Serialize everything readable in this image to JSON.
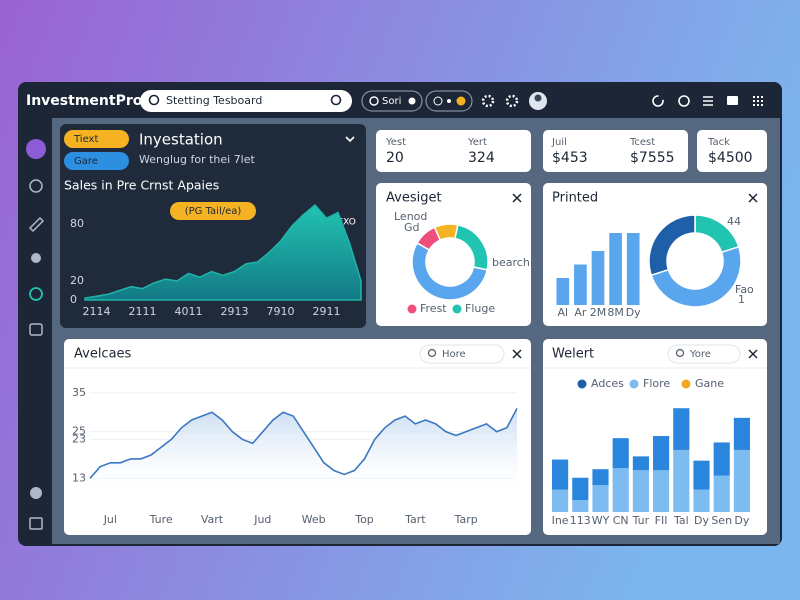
{
  "header": {
    "brand": "InvestmentPro",
    "search": "Stetting Tesboard",
    "chip": "Sori"
  },
  "stats": [
    {
      "label": "Yest",
      "value": 20
    },
    {
      "label": "Yert",
      "value": 324
    },
    {
      "label": "Juil",
      "value": "$453"
    },
    {
      "label": "Tcest",
      "value": "$7555"
    },
    {
      "label": "Tack",
      "value": "$4500"
    }
  ],
  "chart_data": [
    {
      "type": "area",
      "tags": [
        "Tiext",
        "Gare"
      ],
      "title": "Inyestation",
      "subtitle": "Wenglug for thei 7let",
      "heading": "Sales in Pre Crnst Apaies",
      "badge": "(PG Tail/ea)",
      "legend": "PEXO",
      "color": "#1fb5a8",
      "categories": [
        null,
        "2114",
        null,
        null,
        null,
        "2111",
        null,
        null,
        null,
        "4011",
        null,
        null,
        null,
        "2913",
        null,
        null,
        null,
        "7910",
        null,
        null,
        null,
        "2911",
        null,
        null,
        null
      ],
      "values": [
        2,
        4,
        6,
        10,
        14,
        12,
        18,
        22,
        20,
        28,
        24,
        30,
        26,
        30,
        38,
        40,
        50,
        62,
        78,
        90,
        100,
        86,
        92,
        60,
        20
      ],
      "ylim": [
        0,
        100
      ],
      "yticks": [
        0,
        20,
        80
      ]
    },
    {
      "type": "donut",
      "title": "Avesiget",
      "categories": [
        "Frest",
        null,
        "Fluge",
        null
      ],
      "values": [
        10,
        10,
        25,
        55
      ],
      "colors": [
        "#ee4f7e",
        "#f5b324",
        "#20c4b0",
        "#5aa6ee"
      ],
      "annotations": [
        "Lenod",
        "Gd",
        "bearch"
      ]
    },
    {
      "type": "bar",
      "title": "Printed",
      "categories": [
        "Al",
        "Ar",
        "2M",
        "8M",
        "Dy"
      ],
      "values": [
        30,
        45,
        60,
        80,
        80
      ],
      "color": "#5aa6ee",
      "ylim": [
        0,
        100
      ]
    },
    {
      "type": "donut",
      "values": [
        20,
        50,
        30
      ],
      "colors": [
        "#20c4b0",
        "#5aa6ee",
        "#1f5fa8"
      ],
      "annotations": [
        "44",
        "Fao",
        "1"
      ]
    },
    {
      "type": "line",
      "title": "Avelcaes",
      "search": "Hore",
      "color": "#3b78c2",
      "categories": [
        null,
        null,
        "Jul",
        null,
        null,
        null,
        null,
        "Ture",
        null,
        null,
        null,
        null,
        "Vart",
        null,
        null,
        null,
        null,
        "Jud",
        null,
        null,
        null,
        null,
        "Web",
        null,
        null,
        null,
        null,
        "Top",
        null,
        null,
        null,
        null,
        "Tart",
        null,
        null,
        null,
        null,
        "Tarp",
        null,
        null,
        null,
        null,
        null
      ],
      "values": [
        13,
        16,
        17,
        17,
        18,
        18,
        19,
        21,
        23,
        26,
        28,
        29,
        30,
        28,
        25,
        23,
        22,
        25,
        28,
        30,
        29,
        25,
        21,
        17,
        15,
        14,
        15,
        18,
        23,
        26,
        28,
        29,
        27,
        28,
        27,
        25,
        24,
        25,
        26,
        27,
        25,
        26,
        31
      ],
      "ylim": [
        10,
        37
      ],
      "yticks": [
        13,
        23,
        25,
        35
      ],
      "grid": true
    },
    {
      "type": "stacked-bar",
      "title": "Welert",
      "search": "Yore",
      "categories": [
        "Ine",
        "113",
        "WY",
        "CN",
        "Tur",
        "FII",
        "Tal",
        "Dy",
        "Sen",
        "Dy"
      ],
      "ylim": [
        0,
        100
      ],
      "series": [
        {
          "name": "Adces",
          "color": "#2a86dd",
          "legend_color": "#1f5fa8",
          "values": [
            28,
            21,
            15,
            28,
            13,
            32,
            39,
            27,
            31,
            30
          ]
        },
        {
          "name": "Flore",
          "color": "#7dbcf0",
          "values": [
            21,
            11,
            25,
            41,
            39,
            39,
            58,
            21,
            34,
            58
          ]
        },
        {
          "name": "Gane",
          "color": "#f5a623",
          "values": [
            null,
            null,
            null,
            null,
            null,
            null,
            null,
            null,
            null,
            null
          ]
        }
      ]
    }
  ]
}
